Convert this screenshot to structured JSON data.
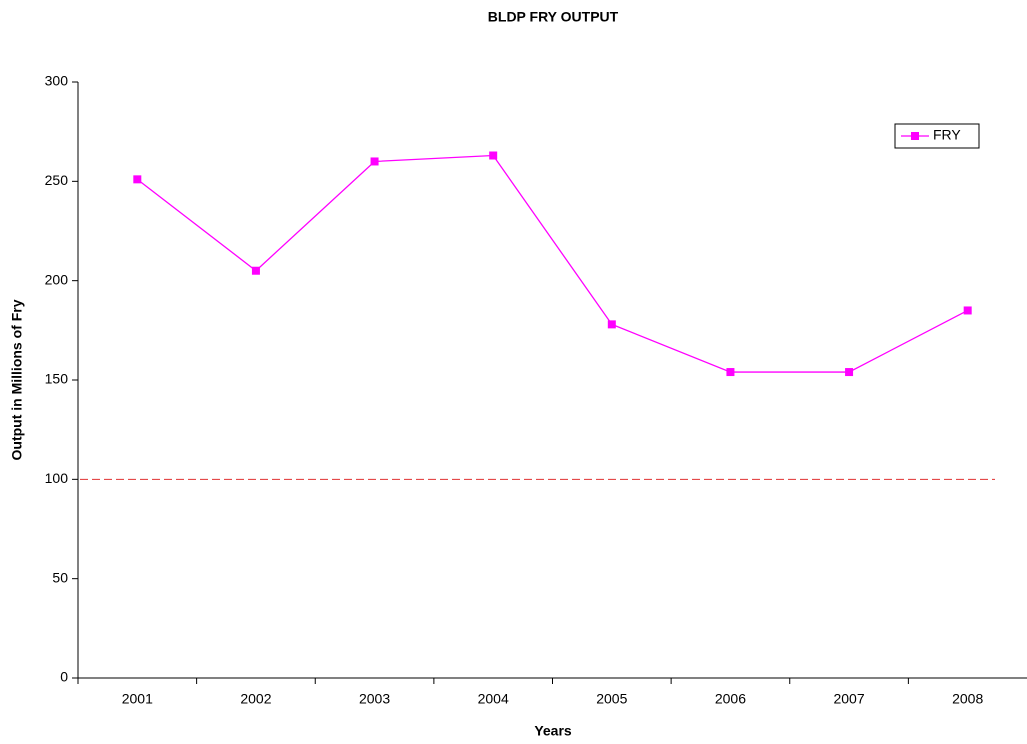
{
  "chart_data": {
    "type": "line",
    "title": "BLDP FRY OUTPUT",
    "x_label": "Years",
    "y_label": "Output in Millions of Fry",
    "categories": [
      "2001",
      "2002",
      "2003",
      "2004",
      "2005",
      "2006",
      "2007",
      "2008"
    ],
    "series": [
      {
        "name": "FRY",
        "color": "#ff00ff",
        "values": [
          251,
          205,
          260,
          263,
          178,
          154,
          154,
          185
        ]
      }
    ],
    "reference_line": {
      "value": 100,
      "color": "#e03030"
    },
    "ylim": [
      0,
      300
    ],
    "yticks": [
      0,
      50,
      100,
      150,
      200,
      250,
      300
    ],
    "legend": "upper right"
  }
}
